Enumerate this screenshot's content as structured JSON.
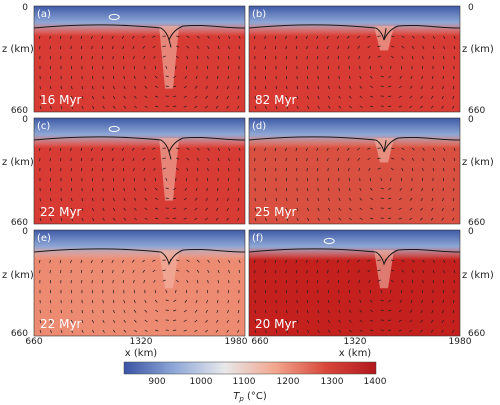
{
  "figure": {
    "panels": [
      {
        "label": "(a)",
        "time": "16 Myr",
        "tp_interior": "#d83a34",
        "slab": "deep",
        "ring": true
      },
      {
        "label": "(b)",
        "time": "82 Myr",
        "tp_interior": "#d83a34",
        "slab": "shallow",
        "ring": false
      },
      {
        "label": "(c)",
        "time": "22 Myr",
        "tp_interior": "#d83a34",
        "slab": "deep",
        "ring": true
      },
      {
        "label": "(d)",
        "time": "25 Myr",
        "tp_interior": "#d95040",
        "slab": "shallow",
        "ring": false
      },
      {
        "label": "(e)",
        "time": "22 Myr",
        "tp_interior": "#ec8a72",
        "slab": "medium",
        "ring": false
      },
      {
        "label": "(f)",
        "time": "20 Myr",
        "tp_interior": "#c4201e",
        "slab": "medium",
        "ring": true
      }
    ],
    "z_axis": {
      "label": "z (km)",
      "top_tick": "0",
      "bottom_tick": "660"
    },
    "x_axis": {
      "label": "x (km)",
      "ticks": [
        "660",
        "1320",
        "1980"
      ]
    },
    "colorbar": {
      "label_var": "T",
      "label_sub": "p",
      "label_unit": " (°C)",
      "ticks": [
        "900",
        "1000",
        "1100",
        "1200",
        "1300",
        "1400"
      ],
      "colors": [
        "#3a53a4",
        "#8fa8d8",
        "#e8e8ea",
        "#f2a68e",
        "#d8483a",
        "#b2171c"
      ]
    }
  }
}
